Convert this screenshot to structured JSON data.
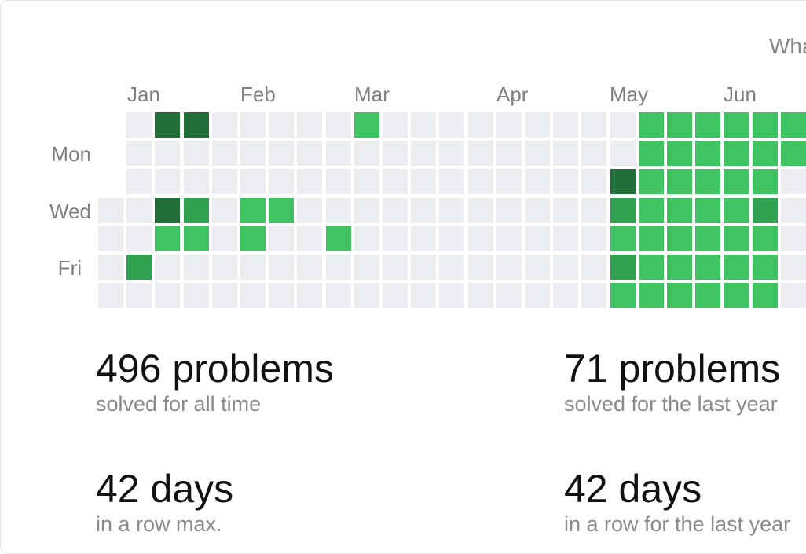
{
  "header": {
    "link_text": "Wha"
  },
  "heatmap": {
    "months": [
      "Jan",
      "Feb",
      "Mar",
      "Apr",
      "May",
      "Jun"
    ],
    "weekday_labels": [
      "Mon",
      "Wed",
      "Fri"
    ],
    "colors": {
      "empty": "#ebedf0",
      "level1": "#40c463",
      "level2": "#30a14e",
      "level3": "#216e39"
    },
    "weeks": [
      [
        null,
        null,
        null,
        0,
        0,
        0,
        0
      ],
      [
        0,
        0,
        0,
        0,
        0,
        2,
        0
      ],
      [
        3,
        0,
        0,
        3,
        1,
        0,
        0
      ],
      [
        3,
        0,
        0,
        2,
        1,
        0,
        0
      ],
      [
        0,
        0,
        0,
        0,
        0,
        0,
        0
      ],
      [
        0,
        0,
        0,
        1,
        1,
        0,
        0
      ],
      [
        0,
        0,
        0,
        1,
        0,
        0,
        0
      ],
      [
        0,
        0,
        0,
        0,
        0,
        0,
        0
      ],
      [
        0,
        0,
        0,
        0,
        1,
        0,
        0
      ],
      [
        1,
        0,
        0,
        0,
        0,
        0,
        0
      ],
      [
        0,
        0,
        0,
        0,
        0,
        0,
        0
      ],
      [
        0,
        0,
        0,
        0,
        0,
        0,
        0
      ],
      [
        0,
        0,
        0,
        0,
        0,
        0,
        0
      ],
      [
        0,
        0,
        0,
        0,
        0,
        0,
        0
      ],
      [
        0,
        0,
        0,
        0,
        0,
        0,
        0
      ],
      [
        0,
        0,
        0,
        0,
        0,
        0,
        0
      ],
      [
        0,
        0,
        0,
        0,
        0,
        0,
        0
      ],
      [
        0,
        0,
        0,
        0,
        0,
        0,
        0
      ],
      [
        0,
        0,
        3,
        2,
        1,
        2,
        1
      ],
      [
        1,
        1,
        1,
        1,
        1,
        1,
        1
      ],
      [
        1,
        1,
        1,
        1,
        1,
        1,
        1
      ],
      [
        1,
        1,
        1,
        1,
        1,
        1,
        1
      ],
      [
        1,
        1,
        1,
        1,
        1,
        1,
        1
      ],
      [
        1,
        1,
        1,
        2,
        1,
        1,
        1
      ],
      [
        1,
        1,
        0,
        0,
        0,
        0,
        0
      ]
    ]
  },
  "stats": {
    "all_time": {
      "value": "496 problems",
      "caption": "solved for all time"
    },
    "last_year": {
      "value": "71 problems",
      "caption": "solved for the last year"
    },
    "streak_max": {
      "value": "42 days",
      "caption": "in a row max."
    },
    "streak_year": {
      "value": "42 days",
      "caption": "in a row for the last year"
    }
  }
}
